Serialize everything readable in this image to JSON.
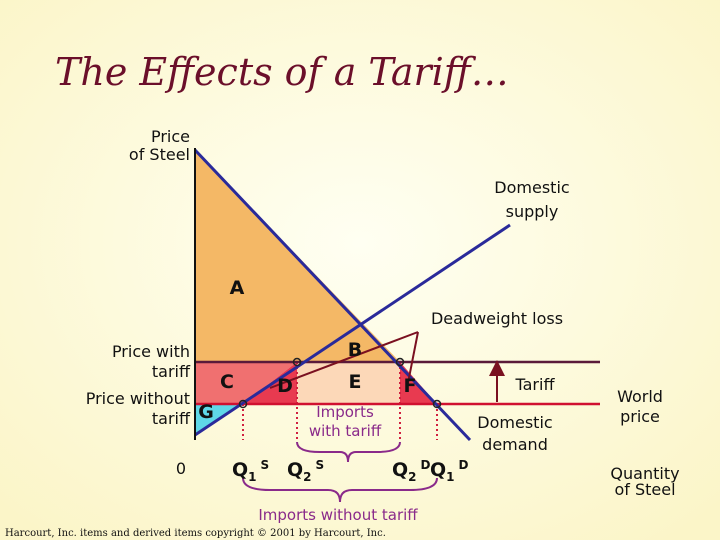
{
  "title": "The Effects of a Tariff…",
  "labels": {
    "price_axis": [
      "Price",
      "of Steel"
    ],
    "domestic_supply": [
      "Domestic",
      "supply"
    ],
    "area_a": "A",
    "area_b": "B",
    "area_c": "C",
    "area_d": "D",
    "area_e": "E",
    "area_f": "F",
    "area_g": "G",
    "deadweight_loss": "Deadweight loss",
    "price_with_tariff": [
      "Price with",
      "tariff"
    ],
    "price_without_tariff": [
      "Price without",
      "tariff"
    ],
    "origin": "0",
    "imports_with_tariff": [
      "Imports",
      "with tariff"
    ],
    "tariff": "Tariff",
    "domestic_demand": [
      "Domestic",
      "demand"
    ],
    "world_price": [
      "World",
      "price"
    ],
    "quantity_axis": [
      "Quantity",
      "of Steel"
    ],
    "imports_without_tariff": "Imports without tariff"
  },
  "quantities": [
    {
      "base": "Q",
      "sub": "1",
      "sup": "S"
    },
    {
      "base": "Q",
      "sub": "2",
      "sup": "S"
    },
    {
      "base": "Q",
      "sub": "2",
      "sup": "D"
    },
    {
      "base": "Q",
      "sub": "1",
      "sup": "D"
    }
  ],
  "footer": "Harcourt, Inc. items and derived items copyright © 2001 by Harcourt, Inc."
}
